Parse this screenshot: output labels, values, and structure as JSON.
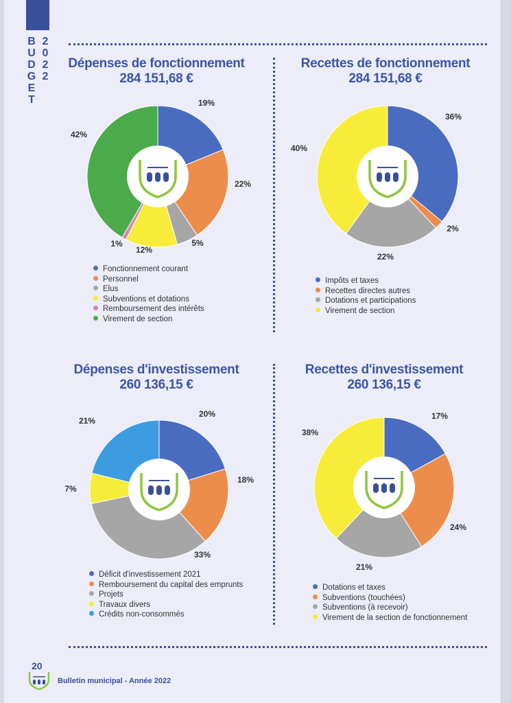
{
  "sidebar": {
    "word": "BUDGET",
    "year": "2022"
  },
  "footer": {
    "page_number": "20",
    "text": "Bulletin municipal - Année 2022"
  },
  "colors": {
    "blue": "#4a6cc0",
    "orange": "#ed8d4b",
    "gray": "#a6a6a6",
    "yellow": "#f7ec3a",
    "pink": "#d983b3",
    "green": "#4bab4a",
    "lightblue": "#3d9be0",
    "title": "#3a55a4",
    "shield": "#8dc63f"
  },
  "chart_data": [
    {
      "type": "pie",
      "title": "Dépenses de fonctionnement",
      "subtitle": "284 151,68 €",
      "categories": [
        "Fonctionnement courant",
        "Personnel",
        "Elus",
        "Subventions et dotations",
        "Remboursement des intérêts",
        "Virement de section"
      ],
      "values": [
        19,
        22,
        5,
        12,
        1,
        42
      ],
      "value_labels": [
        "19%",
        "22%",
        "5%",
        "12%",
        "1%",
        "42%"
      ],
      "colors": [
        "#4a6cc0",
        "#ed8d4b",
        "#a6a6a6",
        "#f7ec3a",
        "#d983b3",
        "#4bab4a"
      ],
      "legend": "bottom"
    },
    {
      "type": "pie",
      "title": "Recettes de fonctionnement",
      "subtitle": "284 151,68 €",
      "categories": [
        "Impôts et taxes",
        "Recettes directes autres",
        "Dotations et participations",
        "Virement de section"
      ],
      "values": [
        36,
        2,
        22,
        40
      ],
      "value_labels": [
        "36%",
        "2%",
        "22%",
        "40%"
      ],
      "colors": [
        "#4a6cc0",
        "#ed8d4b",
        "#a6a6a6",
        "#f7ec3a"
      ],
      "legend": "bottom"
    },
    {
      "type": "pie",
      "title": "Dépenses d'investissement",
      "subtitle": "260 136,15 €",
      "categories": [
        "Déficit d'investissement 2021",
        "Remboursement du capital des emprunts",
        "Projets",
        "Travaux divers",
        "Crédits non-consommés"
      ],
      "values": [
        20,
        18,
        33,
        7,
        21
      ],
      "value_labels": [
        "20%",
        "18%",
        "33%",
        "7%",
        "21%"
      ],
      "colors": [
        "#4a6cc0",
        "#ed8d4b",
        "#a6a6a6",
        "#f7ec3a",
        "#3d9be0"
      ],
      "legend": "bottom"
    },
    {
      "type": "pie",
      "title": "Recettes d'investissement",
      "subtitle": "260 136,15 €",
      "categories": [
        "Dotations et taxes",
        "Subventions (touchées)",
        "Subventions (à recevoir)",
        "Virement de la section de fonctionnement"
      ],
      "values": [
        17,
        24,
        21,
        38
      ],
      "value_labels": [
        "17%",
        "24%",
        "21%",
        "38%"
      ],
      "colors": [
        "#4a6cc0",
        "#ed8d4b",
        "#a6a6a6",
        "#f7ec3a"
      ],
      "legend": "bottom"
    }
  ]
}
